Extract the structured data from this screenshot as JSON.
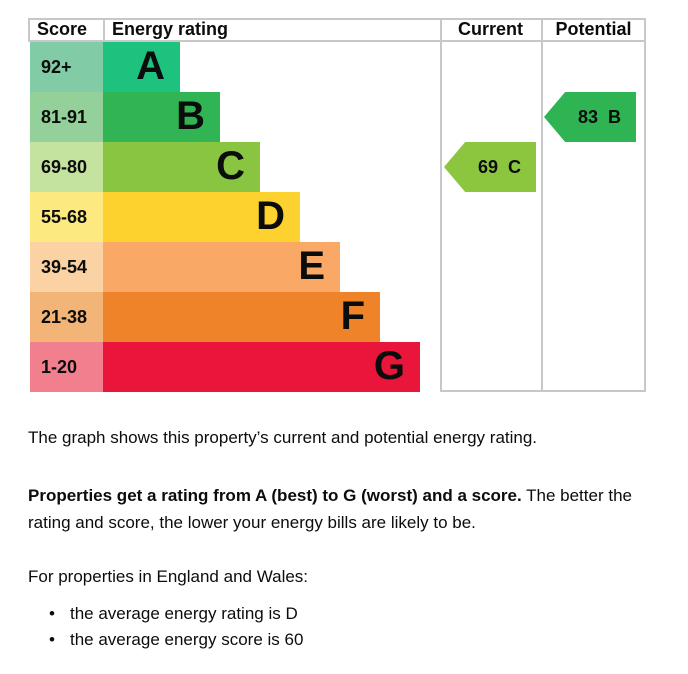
{
  "header": {
    "score": "Score",
    "energy_rating": "Energy rating",
    "current": "Current",
    "potential": "Potential"
  },
  "bands": [
    {
      "range": "92+",
      "letter": "A",
      "bar_color": "#1ec27f",
      "range_color": "#82cba7"
    },
    {
      "range": "81-91",
      "letter": "B",
      "bar_color": "#30b454",
      "range_color": "#94d099"
    },
    {
      "range": "69-80",
      "letter": "C",
      "bar_color": "#89c540",
      "range_color": "#c4e39f"
    },
    {
      "range": "55-68",
      "letter": "D",
      "bar_color": "#fdd22e",
      "range_color": "#fce97f"
    },
    {
      "range": "39-54",
      "letter": "E",
      "bar_color": "#f9a865",
      "range_color": "#fbd2a4"
    },
    {
      "range": "21-38",
      "letter": "F",
      "bar_color": "#ee8329",
      "range_color": "#f3b477"
    },
    {
      "range": "1-20",
      "letter": "G",
      "bar_color": "#e9153b",
      "range_color": "#f27f8e"
    }
  ],
  "markers": {
    "current": {
      "score": "69",
      "letter": "C",
      "color": "#8cc63f",
      "band_index": 2
    },
    "potential": {
      "score": "83",
      "letter": "B",
      "color": "#2fb454",
      "band_index": 1
    }
  },
  "description": {
    "p1": "The graph shows this property’s current and potential energy rating.",
    "p2_bold": "Properties get a rating from A (best) to G (worst) and a score.",
    "p2_rest": " The better the rating and score, the lower your energy bills are likely to be.",
    "p3": "For properties in England and Wales:",
    "bullets": [
      "the average energy rating is D",
      "the average energy score is 60"
    ]
  },
  "colors": {
    "border": "#c8c8c8",
    "text": "#0b0c0c"
  },
  "chart_data": {
    "type": "bar",
    "title": "EPC energy rating chart (Current and Potential)",
    "categories": [
      "A",
      "B",
      "C",
      "D",
      "E",
      "F",
      "G"
    ],
    "score_ranges": [
      "92+",
      "81-91",
      "69-80",
      "55-68",
      "39-54",
      "21-38",
      "1-20"
    ],
    "band_colors": [
      "#1ec27f",
      "#30b454",
      "#89c540",
      "#fdd22e",
      "#f9a865",
      "#ee8329",
      "#e9153b"
    ],
    "columns": [
      "Score",
      "Energy rating",
      "Current",
      "Potential"
    ],
    "current": {
      "score": 69,
      "rating": "C"
    },
    "potential": {
      "score": 83,
      "rating": "B"
    },
    "average_energy_rating": "D",
    "average_energy_score": 60,
    "layout": {
      "orientation": "horizontal",
      "bars_increase_toward_worst": true,
      "grid": false,
      "legend": "none"
    }
  }
}
